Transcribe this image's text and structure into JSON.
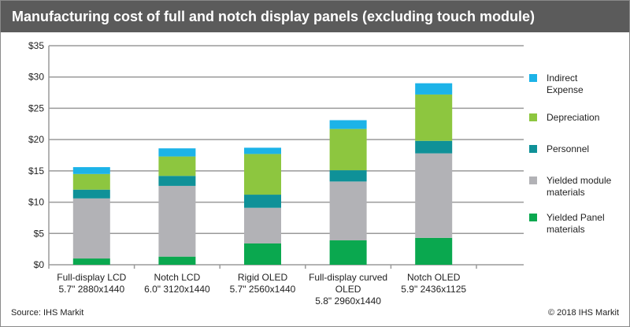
{
  "chart_data": {
    "type": "bar",
    "stacked": true,
    "title": "Manufacturing cost of full and notch display panels (excluding touch module)",
    "xlabel": "",
    "ylabel": "",
    "ylim": [
      0,
      35
    ],
    "yticks": [
      "$0",
      "$5",
      "$10",
      "$15",
      "$20",
      "$25",
      "$30",
      "$35"
    ],
    "ytick_values": [
      0,
      5,
      10,
      15,
      20,
      25,
      30,
      35
    ],
    "grid": true,
    "legend_position": "right",
    "categories": [
      [
        "Full-display LCD",
        "5.7\" 2880x1440"
      ],
      [
        "Notch LCD",
        "6.0\" 3120x1440"
      ],
      [
        "Rigid OLED",
        "5.7\" 2560x1440"
      ],
      [
        "Full-display curved",
        "OLED",
        "5.8\" 2960x1440"
      ],
      [
        "Notch OLED",
        "5.9\" 2436x1125"
      ]
    ],
    "series": [
      {
        "name": [
          "Yielded Panel",
          "materials"
        ],
        "color": "#0aa84f",
        "values": [
          1.0,
          1.3,
          3.4,
          3.9,
          4.3
        ]
      },
      {
        "name": [
          "Yielded module",
          "materials"
        ],
        "color": "#b2b2b6",
        "values": [
          9.6,
          11.3,
          5.7,
          9.4,
          13.5
        ]
      },
      {
        "name": [
          "Personnel"
        ],
        "color": "#0f9198",
        "values": [
          1.4,
          1.6,
          2.1,
          1.8,
          2.0
        ]
      },
      {
        "name": [
          "Depreciation"
        ],
        "color": "#8dc63f",
        "values": [
          2.5,
          3.1,
          6.5,
          6.6,
          7.4
        ]
      },
      {
        "name": [
          "Indirect",
          "Expense"
        ],
        "color": "#1cb3e8",
        "values": [
          1.1,
          1.3,
          1.0,
          1.4,
          1.8
        ]
      }
    ]
  },
  "footer": {
    "source": "Source: IHS Markit",
    "copyright": "© 2018 IHS Markit"
  }
}
